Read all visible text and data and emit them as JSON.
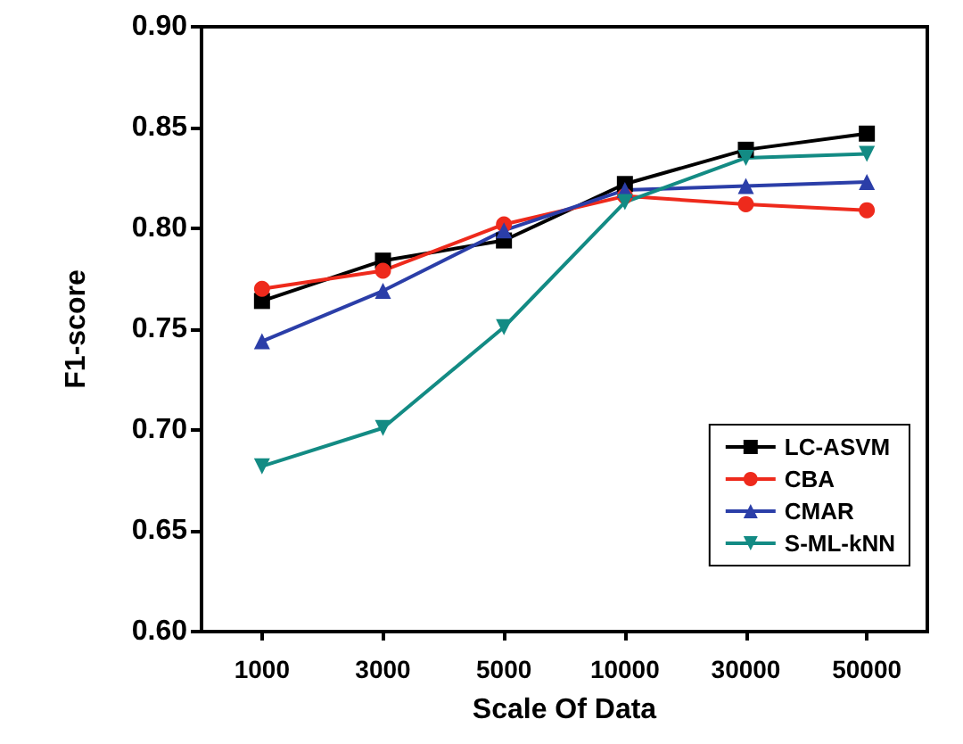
{
  "chart_data": {
    "type": "line",
    "xlabel": "Scale Of Data",
    "ylabel": "F1-score",
    "categories": [
      "1000",
      "3000",
      "5000",
      "10000",
      "30000",
      "50000"
    ],
    "ylim": [
      0.6,
      0.9
    ],
    "yticks": [
      {
        "value": 0.6,
        "label": "0.60"
      },
      0.65,
      {
        "value": 0.7,
        "label": "0.70"
      },
      0.75,
      {
        "value": 0.8,
        "label": "0.80"
      },
      0.85,
      {
        "value": 0.9,
        "label": "0.90"
      }
    ],
    "grid": false,
    "legend": "bottom right",
    "line_style": "solid",
    "series": [
      {
        "name": "LC-ASVM",
        "color": "#000000",
        "marker": "square",
        "values": [
          0.764,
          0.784,
          0.794,
          0.822,
          0.839,
          0.847
        ]
      },
      {
        "name": "CBA",
        "color": "#ee2a1c",
        "marker": "circle",
        "values": [
          0.77,
          0.779,
          0.802,
          0.816,
          0.812,
          0.809
        ]
      },
      {
        "name": "CMAR",
        "color": "#2b3ea8",
        "marker": "triangle",
        "values": [
          0.744,
          0.769,
          0.799,
          0.819,
          0.821,
          0.823
        ]
      },
      {
        "name": "S-ML-kNN",
        "color": "#138b84",
        "marker": "triangle-down",
        "values": [
          0.682,
          0.701,
          0.751,
          0.813,
          0.835,
          0.837
        ]
      }
    ]
  }
}
